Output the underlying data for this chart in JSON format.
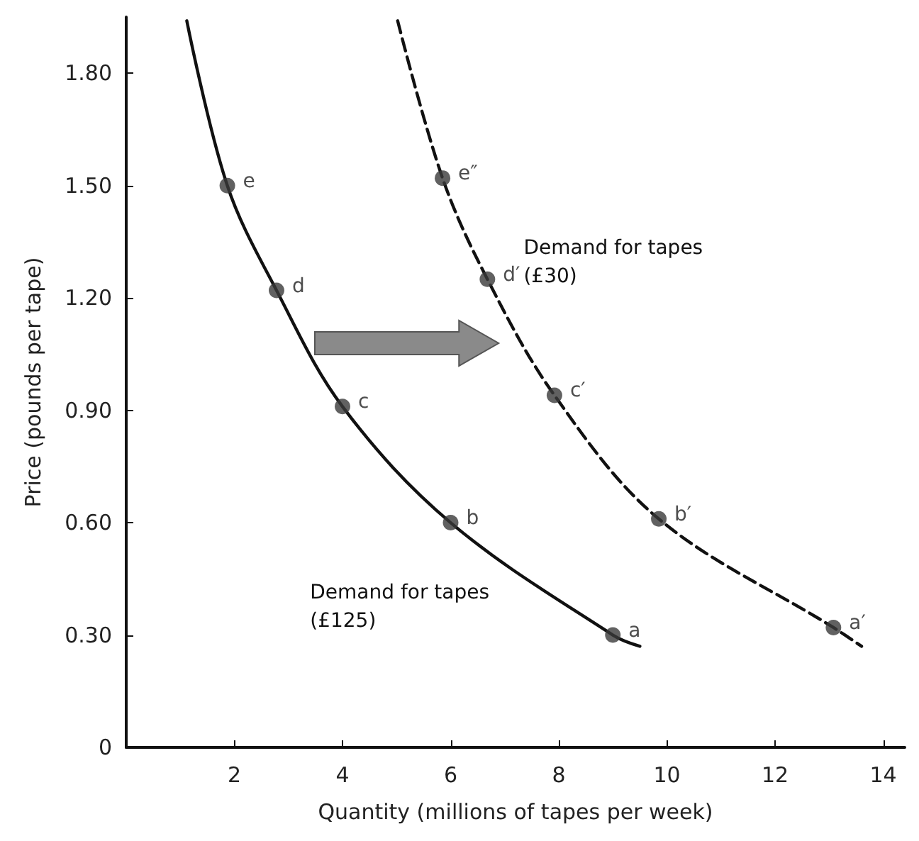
{
  "chart_data": {
    "type": "line",
    "xlabel": "Quantity (millions of tapes per week)",
    "ylabel": "Price (pounds per tape)",
    "xlim": [
      0,
      14.4
    ],
    "xticks": [
      2,
      4,
      6,
      8,
      10,
      12,
      14
    ],
    "ylim": [
      0,
      1.95
    ],
    "yticks": [
      {
        "value": 0,
        "label": "0"
      },
      {
        "value": 0.3,
        "label": "0.30"
      },
      {
        "value": 0.6,
        "label": "0.60"
      },
      {
        "value": 0.9,
        "label": "0.90"
      },
      {
        "value": 1.2,
        "label": "1.20"
      },
      {
        "value": 1.5,
        "label": "1.50"
      },
      {
        "value": 1.8,
        "label": "1.80"
      }
    ],
    "grid": false,
    "legend": false,
    "series": [
      {
        "name": "Demand for tapes\n(£125)",
        "color": "#111111",
        "line_style": "solid",
        "marker": "none",
        "x": [
          1.12,
          1.87,
          2.78,
          4,
          6,
          9,
          9.5
        ],
        "values": [
          1.94,
          1.5,
          1.22,
          0.91,
          0.6,
          0.3,
          0.27
        ]
      },
      {
        "name": "Demand for tapes\n(£30)",
        "color": "#111111",
        "line_style": "dashed",
        "marker": "none",
        "x": [
          5.02,
          5.85,
          6.68,
          7.92,
          9.85,
          13.08,
          13.6
        ],
        "values": [
          1.94,
          1.52,
          1.25,
          0.94,
          0.61,
          0.32,
          0.27
        ]
      },
      {
        "type": "scatter",
        "color": "#3a3a3a",
        "marker": "circle",
        "x": [
          1.87,
          2.78,
          4,
          6,
          9
        ],
        "values": [
          1.5,
          1.22,
          0.91,
          0.6,
          0.3
        ]
      },
      {
        "type": "scatter",
        "color": "#3a3a3a",
        "marker": "circle",
        "x": [
          5.85,
          6.68,
          7.92,
          9.85,
          13.08
        ],
        "values": [
          1.52,
          1.25,
          0.94,
          0.61,
          0.32
        ]
      }
    ],
    "annotations": [
      {
        "text": "e",
        "x": 1.87,
        "y": 1.5
      },
      {
        "text": "d",
        "x": 2.78,
        "y": 1.22
      },
      {
        "text": "c",
        "x": 4,
        "y": 0.91
      },
      {
        "text": "b",
        "x": 6,
        "y": 0.6
      },
      {
        "text": "a",
        "x": 9,
        "y": 0.3
      },
      {
        "text": "e″",
        "x": 5.85,
        "y": 1.52
      },
      {
        "text": "d′",
        "x": 6.68,
        "y": 1.25
      },
      {
        "text": "c′",
        "x": 7.92,
        "y": 0.94
      },
      {
        "text": "b′",
        "x": 9.85,
        "y": 0.61
      },
      {
        "text": "a′",
        "x": 13.08,
        "y": 0.32
      }
    ]
  }
}
